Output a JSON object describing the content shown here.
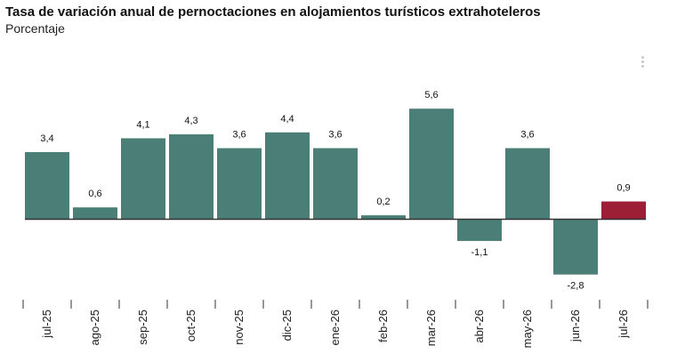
{
  "header": {
    "title": "Tasa de variación anual de pernoctaciones en alojamientos turísticos extrahoteleros",
    "subtitle": "Porcentaje"
  },
  "menu_icon": "vertical-dots-icon",
  "colors": {
    "default_bar": "#4a7e76",
    "highlight_bar": "#9c1f37",
    "axis": "#333333"
  },
  "chart_data": {
    "type": "bar",
    "title": "Tasa de variación anual de pernoctaciones en alojamientos turísticos extrahoteleros",
    "subtitle": "Porcentaje",
    "xlabel": "",
    "ylabel": "",
    "categories": [
      "jul-25",
      "ago-25",
      "sep-25",
      "oct-25",
      "nov-25",
      "dic-25",
      "ene-26",
      "feb-26",
      "mar-26",
      "abr-26",
      "may-26",
      "jun-26",
      "jul-26"
    ],
    "values": [
      3.4,
      0.6,
      4.1,
      4.3,
      3.6,
      4.4,
      3.6,
      0.2,
      5.6,
      -1.1,
      3.6,
      -2.8,
      0.9
    ],
    "value_labels": [
      "3,4",
      "0,6",
      "4,1",
      "4,3",
      "3,6",
      "4,4",
      "3,6",
      "0,2",
      "5,6",
      "-1,1",
      "3,6",
      "-2,8",
      "0,9"
    ],
    "highlight_index": 12,
    "ylim": [
      -2.8,
      5.6
    ],
    "grid": false,
    "legend": "none"
  }
}
